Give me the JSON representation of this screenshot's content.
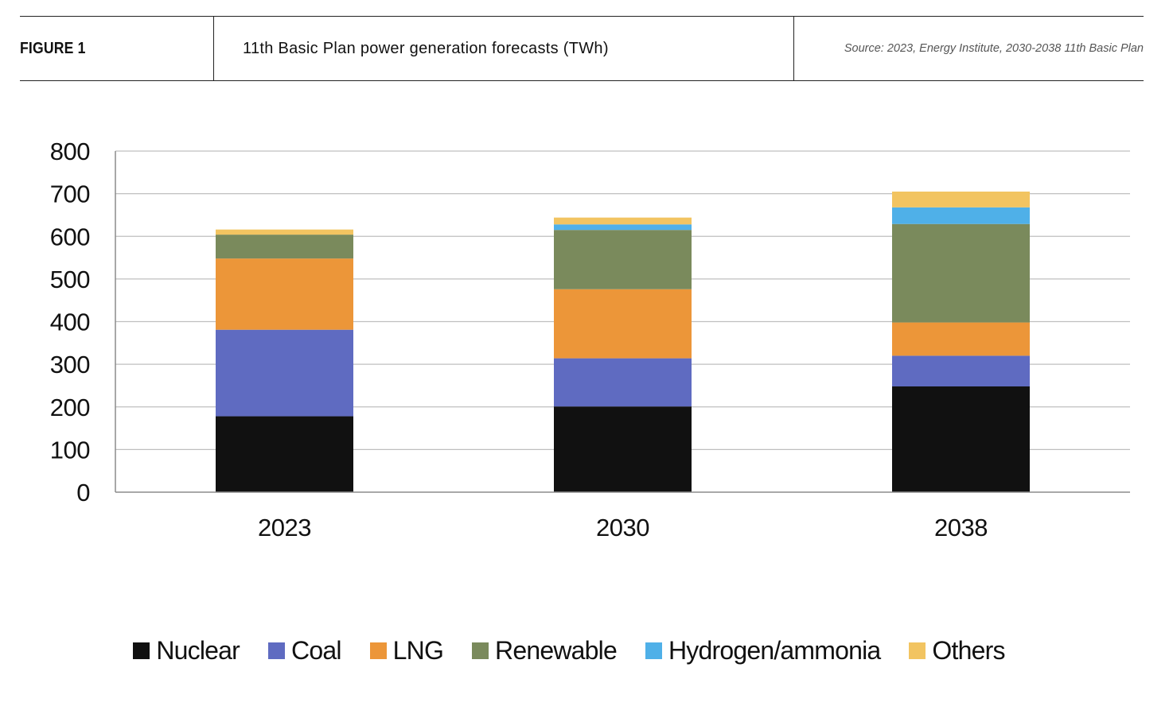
{
  "header": {
    "figure_label": "FIGURE 1",
    "title": "11th Basic Plan power generation forecasts (TWh)",
    "source": "Source: 2023, Energy Institute, 2030-2038 11th Basic Plan"
  },
  "chart_data": {
    "type": "bar",
    "stacked": true,
    "categories": [
      "2023",
      "2030",
      "2038"
    ],
    "series": [
      {
        "name": "Nuclear",
        "color": "#111111",
        "values": [
          178,
          201,
          248
        ]
      },
      {
        "name": "Coal",
        "color": "#5f6bc1",
        "values": [
          203,
          113,
          72
        ]
      },
      {
        "name": "LNG",
        "color": "#ec9639",
        "values": [
          167,
          162,
          78
        ]
      },
      {
        "name": "Renewable",
        "color": "#7a8a5c",
        "values": [
          56,
          139,
          231
        ]
      },
      {
        "name": "Hydrogen/ammonia",
        "color": "#4fb0e8",
        "values": [
          0,
          13,
          39
        ]
      },
      {
        "name": "Others",
        "color": "#f2c461",
        "values": [
          12,
          16,
          37
        ]
      }
    ],
    "ylim": [
      0,
      800
    ],
    "yticks": [
      0,
      100,
      200,
      300,
      400,
      500,
      600,
      700,
      800
    ],
    "grid": true,
    "legend": "bottom",
    "xlabel": "",
    "ylabel": ""
  }
}
